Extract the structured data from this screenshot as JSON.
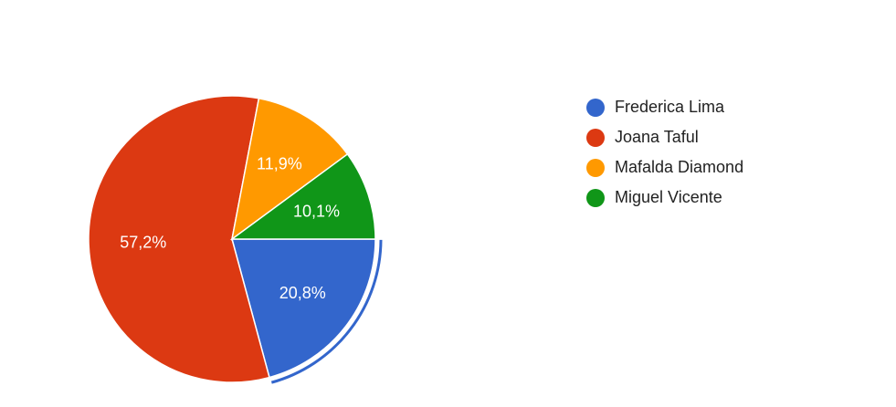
{
  "chart_data": {
    "type": "pie",
    "categories": [
      "Frederica Lima",
      "Joana Taful",
      "Mafalda Diamond",
      "Miguel Vicente"
    ],
    "values": [
      20.8,
      57.2,
      11.9,
      10.1
    ],
    "labels": [
      "20,8%",
      "57,2%",
      "11,9%",
      "10,1%"
    ],
    "colors": [
      "#3366cc",
      "#dc3912",
      "#ff9900",
      "#109618"
    ],
    "legend_position": "right",
    "highlighted_slice": "Frederica Lima"
  }
}
